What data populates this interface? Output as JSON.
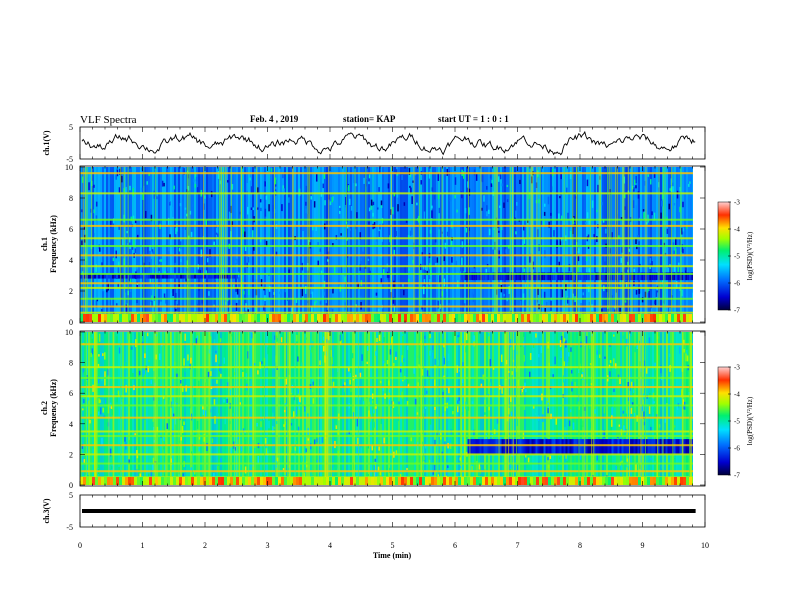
{
  "header": {
    "title": "VLF Spectra",
    "date": "Feb. 4 , 2019",
    "station": "station= KAP",
    "start": "start  UT =   1 : 0  : 1"
  },
  "chart_data": {
    "type": "heatmap",
    "xlabel": "Time  (min)",
    "xlim": [
      0,
      10
    ],
    "xticks": [
      "0",
      "1",
      "2",
      "3",
      "4",
      "5",
      "6",
      "7",
      "8",
      "9",
      "10"
    ],
    "panels": [
      {
        "id": "ch1v",
        "type": "line",
        "ylabel": "ch.1(V)",
        "ylim": [
          -5,
          5
        ],
        "yticks": [
          "5",
          "-5"
        ]
      },
      {
        "id": "ch1",
        "type": "heatmap",
        "ylabel1": "ch.1",
        "ylabel2": "Frequency  (kHz)",
        "ylim": [
          0,
          10
        ],
        "yticks": [
          "0",
          "2",
          "4",
          "6",
          "8",
          "10"
        ],
        "bands": [
          0.3,
          0.6,
          1.0,
          1.5,
          2.2,
          2.5,
          3.1,
          3.6,
          4.3,
          4.9,
          5.4,
          6.2,
          6.6,
          8.3,
          9.6
        ],
        "dark_regions": [
          {
            "f": [
              2.8,
              3.1
            ],
            "t": [
              0,
              2.5
            ]
          },
          {
            "f": [
              2.7,
              3.2
            ],
            "t": [
              6.1,
              9.9
            ]
          }
        ]
      },
      {
        "id": "ch2",
        "type": "heatmap",
        "ylabel1": "ch.2",
        "ylabel2": "Frequency  (kHz)",
        "ylim": [
          0,
          10
        ],
        "yticks": [
          "0",
          "2",
          "4",
          "6",
          "8",
          "10"
        ],
        "bands": [
          0.2,
          0.5,
          0.9,
          1.4,
          2.0,
          2.6,
          3.2,
          3.5,
          4.4,
          5.2,
          5.8,
          6.4,
          7.0,
          7.7,
          9.2
        ],
        "dark_regions": [
          {
            "f": [
              2.0,
              3.0
            ],
            "t": [
              6.2,
              9.9
            ]
          }
        ]
      },
      {
        "id": "ch3v",
        "type": "line",
        "ylabel": "ch.3(V)",
        "ylim": [
          -5,
          5
        ],
        "yticks": [
          "5",
          "-5"
        ],
        "level": 0
      }
    ],
    "colorbar": {
      "label": "log(PSD)(V²/Hz)",
      "range": [
        -7,
        -3
      ],
      "ticks": [
        "-3",
        "-4",
        "-5",
        "-6",
        "-7"
      ]
    }
  }
}
